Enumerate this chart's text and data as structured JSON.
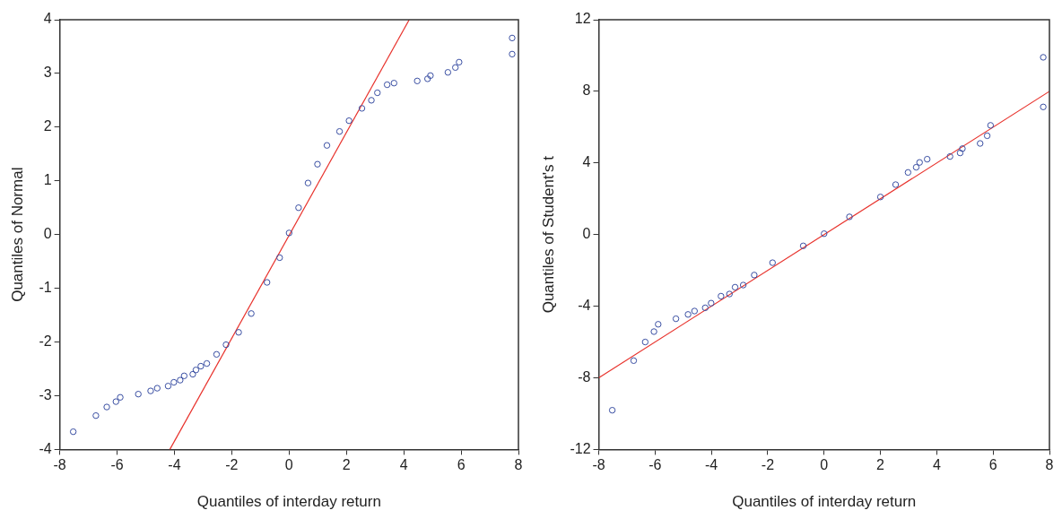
{
  "chart_data": [
    {
      "type": "scatter",
      "xlabel": "Quantiles of interday return",
      "ylabel": "Quantiles of Normal",
      "xlim": [
        -8,
        8
      ],
      "xticks": [
        -8,
        -6,
        -4,
        -2,
        0,
        2,
        4,
        6,
        8
      ],
      "ylim": [
        -4,
        4
      ],
      "yticks": [
        -4,
        -3,
        -2,
        -1,
        0,
        1,
        2,
        3,
        4
      ],
      "grid": false,
      "marker": "circle",
      "series": [
        {
          "color": "#3a4fa3",
          "x": [
            -7.53,
            -6.74,
            -6.36,
            -6.04,
            -5.89,
            -5.26,
            -4.83,
            -4.6,
            -4.22,
            -4.02,
            -3.8,
            -3.66,
            -3.36,
            -3.25,
            -3.08,
            -2.87,
            -2.53,
            -2.2,
            -1.76,
            -1.32,
            -0.77,
            -0.33,
            0,
            0.33,
            0.66,
            0.99,
            1.32,
            1.76,
            2.09,
            2.54,
            2.87,
            3.08,
            3.42,
            3.66,
            4.47,
            4.83,
            4.93,
            5.54,
            5.8,
            5.93,
            7.78,
            7.78
          ],
          "values": [
            -3.67,
            -3.37,
            -3.21,
            -3.11,
            -3.03,
            -2.97,
            -2.91,
            -2.86,
            -2.82,
            -2.75,
            -2.71,
            -2.63,
            -2.6,
            -2.52,
            -2.45,
            -2.4,
            -2.23,
            -2.05,
            -1.82,
            -1.47,
            -0.89,
            -0.43,
            0.03,
            0.5,
            0.96,
            1.31,
            1.66,
            1.92,
            2.12,
            2.35,
            2.5,
            2.64,
            2.79,
            2.82,
            2.86,
            2.9,
            2.96,
            3.02,
            3.11,
            3.21,
            3.36,
            3.66
          ]
        },
        {
          "type": "line",
          "color": "#e8322c",
          "marker": "none",
          "x": [
            -4.16,
            4.19
          ],
          "values": [
            -4,
            4
          ]
        }
      ]
    },
    {
      "type": "scatter",
      "xlabel": "Quantiles of interday return",
      "ylabel": "Quantiles of Student's t",
      "xlim": [
        -8,
        8
      ],
      "xticks": [
        -8,
        -6,
        -4,
        -2,
        0,
        2,
        4,
        6,
        8
      ],
      "ylim": [
        -12,
        12
      ],
      "yticks": [
        -12,
        -8,
        -4,
        0,
        4,
        8,
        12
      ],
      "grid": false,
      "marker": "circle",
      "series": [
        {
          "color": "#3a4fa3",
          "x": [
            -7.52,
            -6.76,
            -6.35,
            -6.04,
            -5.89,
            -5.26,
            -4.83,
            -4.6,
            -4.22,
            -4.01,
            -3.66,
            -3.36,
            -3.16,
            -2.87,
            -2.48,
            -1.83,
            -0.74,
            0,
            0.9,
            2,
            2.54,
            2.98,
            3.27,
            3.39,
            3.66,
            4.47,
            4.83,
            4.91,
            5.54,
            5.79,
            5.91,
            7.78,
            7.78
          ],
          "values": [
            -9.81,
            -7.04,
            -6,
            -5.42,
            -5.01,
            -4.7,
            -4.46,
            -4.27,
            -4.09,
            -3.83,
            -3.44,
            -3.32,
            -2.94,
            -2.82,
            -2.26,
            -1.57,
            -0.63,
            0.05,
            0.99,
            2.1,
            2.79,
            3.47,
            3.76,
            4.03,
            4.21,
            4.36,
            4.56,
            4.8,
            5.09,
            5.52,
            6.1,
            7.13,
            9.9
          ]
        },
        {
          "type": "line",
          "color": "#e8322c",
          "marker": "none",
          "x": [
            -8,
            8
          ],
          "values": [
            -8,
            8
          ]
        }
      ]
    }
  ]
}
